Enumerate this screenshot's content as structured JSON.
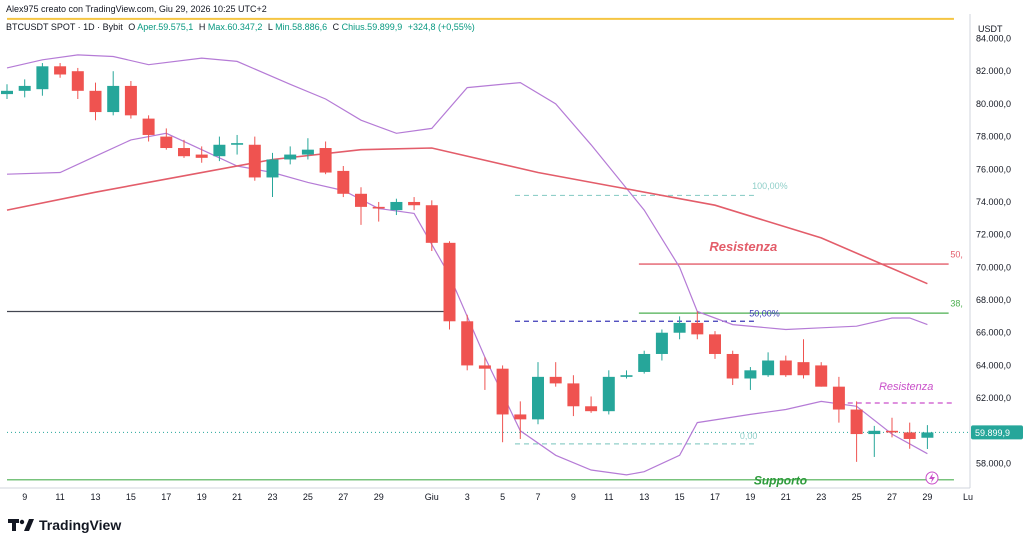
{
  "header": {
    "credit": "Alex975 creato con TradingView.com, Giu 29, 2026 10:25 UTC+2",
    "symbol": "BTCUSDT SPOT · 1D · Bybit",
    "o_label": "O",
    "o_value": "Aper.59.575,1",
    "h_label": "H",
    "h_value": "Max.60.347,2",
    "l_label": "L",
    "l_value": "Min.58.886,6",
    "c_label": "C",
    "c_value": "Chius.59.899,9",
    "change": "+324,8 (+0,55%)"
  },
  "brand": {
    "name": "TradingView"
  },
  "colors": {
    "up": "#26a69a",
    "down": "#ef5350",
    "bb": "#b57bd6",
    "ma": "#e35d6a",
    "resistance": "#e35d6a",
    "support": "#4caf50",
    "fib38": "#4caf50",
    "yellow": "#f5c542",
    "gray": "#434651",
    "purple_dashed": "#3d3ab8",
    "pink_dashed": "#c94fc9",
    "text_green": "#2e9b3c",
    "fib100": "#90cfc9"
  },
  "chart_data": {
    "type": "candlestick",
    "currency": "USDT",
    "ylim": [
      56500,
      85500
    ],
    "y_ticks": [
      58000,
      60000,
      62000,
      64000,
      66000,
      68000,
      70000,
      72000,
      74000,
      76000,
      78000,
      80000,
      82000,
      84000
    ],
    "y_tick_labels": [
      "58.000,0",
      "60.000,0",
      "62.000,0",
      "64.000,0",
      "66.000,0",
      "68.000,0",
      "70.000,0",
      "72.000,0",
      "74.000,0",
      "76.000,0",
      "78.000,0",
      "80.000,0",
      "82.000,0",
      "84.000,0"
    ],
    "x_ticks": [
      {
        "i": 1,
        "label": "9"
      },
      {
        "i": 3,
        "label": "11"
      },
      {
        "i": 5,
        "label": "13"
      },
      {
        "i": 7,
        "label": "15"
      },
      {
        "i": 9,
        "label": "17"
      },
      {
        "i": 11,
        "label": "19"
      },
      {
        "i": 13,
        "label": "21"
      },
      {
        "i": 15,
        "label": "23"
      },
      {
        "i": 17,
        "label": "25"
      },
      {
        "i": 19,
        "label": "27"
      },
      {
        "i": 21,
        "label": "29"
      },
      {
        "i": 24,
        "label": "Giu"
      },
      {
        "i": 26,
        "label": "3"
      },
      {
        "i": 28,
        "label": "5"
      },
      {
        "i": 30,
        "label": "7"
      },
      {
        "i": 32,
        "label": "9"
      },
      {
        "i": 34,
        "label": "11"
      },
      {
        "i": 36,
        "label": "13"
      },
      {
        "i": 38,
        "label": "15"
      },
      {
        "i": 40,
        "label": "17"
      },
      {
        "i": 42,
        "label": "19"
      },
      {
        "i": 44,
        "label": "21"
      },
      {
        "i": 46,
        "label": "23"
      },
      {
        "i": 48,
        "label": "25"
      },
      {
        "i": 50,
        "label": "27"
      },
      {
        "i": 52,
        "label": "29"
      }
    ],
    "x_extra_label": "Lu",
    "candles": [
      {
        "o": 80600,
        "h": 81200,
        "l": 80300,
        "c": 80800
      },
      {
        "o": 80800,
        "h": 81500,
        "l": 80400,
        "c": 81100
      },
      {
        "o": 80900,
        "h": 82500,
        "l": 80500,
        "c": 82300
      },
      {
        "o": 82300,
        "h": 82500,
        "l": 81600,
        "c": 81800
      },
      {
        "o": 82000,
        "h": 82200,
        "l": 80300,
        "c": 80800
      },
      {
        "o": 80800,
        "h": 81300,
        "l": 79000,
        "c": 79500
      },
      {
        "o": 79500,
        "h": 82000,
        "l": 79300,
        "c": 81100
      },
      {
        "o": 81100,
        "h": 81400,
        "l": 79100,
        "c": 79300
      },
      {
        "o": 79100,
        "h": 79300,
        "l": 77700,
        "c": 78100
      },
      {
        "o": 78000,
        "h": 78500,
        "l": 77200,
        "c": 77300
      },
      {
        "o": 77300,
        "h": 77800,
        "l": 76700,
        "c": 76800
      },
      {
        "o": 76900,
        "h": 77400,
        "l": 76400,
        "c": 76700
      },
      {
        "o": 76800,
        "h": 78000,
        "l": 76500,
        "c": 77500
      },
      {
        "o": 77500,
        "h": 78100,
        "l": 76900,
        "c": 77600
      },
      {
        "o": 77500,
        "h": 78000,
        "l": 75300,
        "c": 75500
      },
      {
        "o": 75500,
        "h": 77000,
        "l": 74300,
        "c": 76600
      },
      {
        "o": 76600,
        "h": 77400,
        "l": 76300,
        "c": 76900
      },
      {
        "o": 76900,
        "h": 77900,
        "l": 76600,
        "c": 77200
      },
      {
        "o": 77300,
        "h": 77700,
        "l": 75700,
        "c": 75800
      },
      {
        "o": 75900,
        "h": 76200,
        "l": 74300,
        "c": 74500
      },
      {
        "o": 74500,
        "h": 74900,
        "l": 72600,
        "c": 73700
      },
      {
        "o": 73700,
        "h": 74000,
        "l": 72800,
        "c": 73600
      },
      {
        "o": 73500,
        "h": 74200,
        "l": 73200,
        "c": 74000
      },
      {
        "o": 74000,
        "h": 74300,
        "l": 73500,
        "c": 73800
      },
      {
        "o": 73800,
        "h": 74100,
        "l": 71000,
        "c": 71500
      },
      {
        "o": 71500,
        "h": 71600,
        "l": 66200,
        "c": 66700
      },
      {
        "o": 66700,
        "h": 67100,
        "l": 63700,
        "c": 64000
      },
      {
        "o": 64000,
        "h": 64500,
        "l": 62500,
        "c": 63800
      },
      {
        "o": 63800,
        "h": 64000,
        "l": 59300,
        "c": 61000
      },
      {
        "o": 61000,
        "h": 61800,
        "l": 59500,
        "c": 60700
      },
      {
        "o": 60700,
        "h": 64200,
        "l": 60400,
        "c": 63300
      },
      {
        "o": 63300,
        "h": 64200,
        "l": 62700,
        "c": 62900
      },
      {
        "o": 62900,
        "h": 63400,
        "l": 60900,
        "c": 61500
      },
      {
        "o": 61500,
        "h": 62100,
        "l": 61100,
        "c": 61200
      },
      {
        "o": 61200,
        "h": 63700,
        "l": 61000,
        "c": 63300
      },
      {
        "o": 63300,
        "h": 63700,
        "l": 63200,
        "c": 63400
      },
      {
        "o": 63600,
        "h": 64900,
        "l": 63500,
        "c": 64700
      },
      {
        "o": 64700,
        "h": 66200,
        "l": 64300,
        "c": 66000
      },
      {
        "o": 66000,
        "h": 67000,
        "l": 65600,
        "c": 66600
      },
      {
        "o": 66600,
        "h": 67300,
        "l": 65600,
        "c": 65900
      },
      {
        "o": 65900,
        "h": 66100,
        "l": 64400,
        "c": 64700
      },
      {
        "o": 64700,
        "h": 64900,
        "l": 62800,
        "c": 63200
      },
      {
        "o": 63200,
        "h": 63900,
        "l": 62500,
        "c": 63700
      },
      {
        "o": 63400,
        "h": 64800,
        "l": 63300,
        "c": 64300
      },
      {
        "o": 64300,
        "h": 64600,
        "l": 63300,
        "c": 63400
      },
      {
        "o": 64200,
        "h": 65600,
        "l": 63200,
        "c": 63400
      },
      {
        "o": 64000,
        "h": 64200,
        "l": 62700,
        "c": 62700
      },
      {
        "o": 62700,
        "h": 63300,
        "l": 60500,
        "c": 61300
      },
      {
        "o": 61300,
        "h": 61800,
        "l": 58100,
        "c": 59800
      },
      {
        "o": 59800,
        "h": 60300,
        "l": 58400,
        "c": 60000
      },
      {
        "o": 60000,
        "h": 60800,
        "l": 59600,
        "c": 59900
      },
      {
        "o": 59900,
        "h": 60500,
        "l": 58900,
        "c": 59500
      },
      {
        "o": 59575,
        "h": 60347,
        "l": 58887,
        "c": 59900
      }
    ],
    "ma_line": [
      [
        0,
        73500
      ],
      [
        5,
        74600
      ],
      [
        10,
        75600
      ],
      [
        15,
        76600
      ],
      [
        20,
        77200
      ],
      [
        24,
        77300
      ],
      [
        30,
        75800
      ],
      [
        34,
        75000
      ],
      [
        40,
        73800
      ],
      [
        46,
        71800
      ],
      [
        52,
        69000
      ]
    ],
    "bb_upper": [
      [
        0,
        82200
      ],
      [
        2,
        82700
      ],
      [
        4,
        83000
      ],
      [
        6,
        82900
      ],
      [
        8,
        82400
      ],
      [
        11,
        82800
      ],
      [
        13,
        82600
      ],
      [
        16,
        81200
      ],
      [
        18,
        80300
      ],
      [
        20,
        79000
      ],
      [
        22,
        78200
      ],
      [
        24,
        78500
      ],
      [
        26,
        81000
      ],
      [
        29,
        81300
      ],
      [
        31,
        80000
      ],
      [
        33,
        77500
      ],
      [
        36,
        73500
      ],
      [
        38,
        70000
      ],
      [
        39,
        67300
      ],
      [
        41,
        66500
      ],
      [
        44,
        66200
      ],
      [
        46,
        66300
      ],
      [
        48,
        66400
      ],
      [
        50,
        66900
      ],
      [
        51,
        66900
      ],
      [
        52,
        66500
      ]
    ],
    "bb_lower": [
      [
        0,
        75700
      ],
      [
        3,
        75800
      ],
      [
        5,
        76800
      ],
      [
        7,
        77800
      ],
      [
        9,
        78200
      ],
      [
        11,
        77200
      ],
      [
        13,
        76200
      ],
      [
        15,
        75800
      ],
      [
        17,
        75200
      ],
      [
        19,
        74700
      ],
      [
        21,
        73600
      ],
      [
        23,
        73300
      ],
      [
        25,
        69500
      ],
      [
        27,
        64500
      ],
      [
        29,
        60000
      ],
      [
        31,
        58500
      ],
      [
        33,
        57600
      ],
      [
        35,
        57300
      ],
      [
        36,
        57500
      ],
      [
        38,
        58500
      ],
      [
        39,
        60500
      ],
      [
        42,
        61000
      ],
      [
        44,
        61300
      ],
      [
        46,
        61800
      ],
      [
        48,
        61500
      ],
      [
        50,
        59800
      ],
      [
        52,
        58600
      ]
    ],
    "hlines": [
      {
        "name": "yellow-level",
        "y": 85200,
        "x0": 0,
        "x1": 53.5
      },
      {
        "name": "gray-level",
        "y": 67300,
        "x0": 0,
        "x1": 24.7
      },
      {
        "name": "support-line",
        "y": 57000,
        "x0": 0,
        "x1": 53.5
      },
      {
        "name": "resistance-line",
        "y": 70200,
        "x0": 35.7,
        "x1": 53.2
      },
      {
        "name": "fib-38-line",
        "y": 67200,
        "x0": 35.7,
        "x1": 53.2
      }
    ],
    "dashed_lines": [
      {
        "name": "fib-100-line",
        "y": 74400,
        "x0": 28.7,
        "x1": 42.2
      },
      {
        "name": "fib-50-line",
        "y": 66700,
        "x0": 28.7,
        "x1": 42.2
      },
      {
        "name": "fib-0-line",
        "y": 59200,
        "x0": 28.7,
        "x1": 42.2
      },
      {
        "name": "dashed-resistance-line",
        "y": 61700,
        "x0": 47.5,
        "x1": 53.5
      }
    ],
    "dotted_lines": [
      {
        "name": "last-price-dotted-line",
        "y": 59900,
        "x0": 0,
        "x1": 53.5
      }
    ],
    "annotations": [
      {
        "name": "resistance-label",
        "text": "Resistenza",
        "x": 41.6,
        "y": 71000
      },
      {
        "name": "dashed-resistance-label",
        "text": "Resistenza",
        "x": 50.8,
        "y": 62500
      },
      {
        "name": "support-label",
        "text": "Supporto",
        "x": 43.7,
        "y": 56700
      },
      {
        "name": "fib-100-label",
        "text": "100,00%",
        "x": 43.1,
        "y": 74800
      },
      {
        "name": "fib-50-label",
        "text": "50,00%",
        "x": 42.8,
        "y": 67000
      },
      {
        "name": "fib-0-label",
        "text": "0,00",
        "x": 41.9,
        "y": 59500
      },
      {
        "name": "fib-50-right-label",
        "text": "50,",
        "x": 53.3,
        "y": 70600
      },
      {
        "name": "fib-38-right-label",
        "text": "38,",
        "x": 53.3,
        "y": 67600
      }
    ],
    "last_price": {
      "value": 59900,
      "label": "59.899,9"
    }
  }
}
